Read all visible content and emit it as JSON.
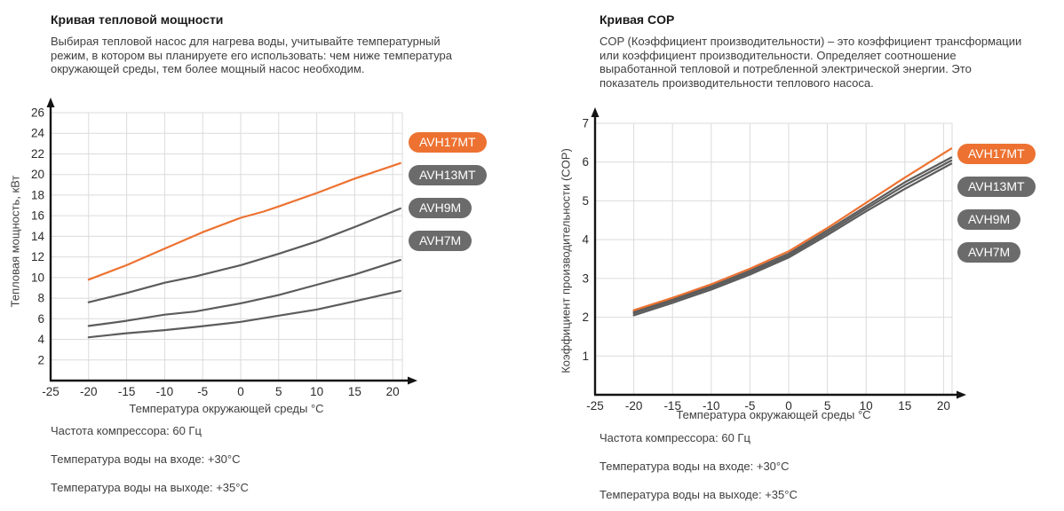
{
  "colors": {
    "accent_orange": "#ED7231",
    "badge_gray": "#6B6B6B",
    "curve_gray": "#5C5C5C",
    "grid": "#DBDBDB",
    "axis": "#141414",
    "text": "#3E3E3E",
    "heading": "#1A1A1A",
    "tick": "#2B2B2B"
  },
  "models": [
    "AVH17MT",
    "AVH13MT",
    "AVH9M",
    "AVH7M"
  ],
  "active_model": "AVH17MT",
  "conditions": [
    "Частота компрессора: 60 Гц",
    "Температура воды на входе: +30°C",
    "Температура воды на выходе: +35°C"
  ],
  "sections": {
    "power": {
      "description": "Выбирая тепловой насос для нагрева воды, учитывайте температурный режим, в котором вы планируете его использовать: чем ниже температура окружающей среды, тем более мощный насос необходим."
    },
    "cop": {
      "description": "COP (Коэффициент производительности) – это коэффициент трансформации или коэффициент производительности. Определяет соотношение выработанной тепловой и потребленной электрической энергии. Это показатель производительности теплового насоса."
    }
  },
  "chart_data": [
    {
      "id": "power",
      "type": "line",
      "title": "Кривая тепловой мощности",
      "xlabel": "Температура окружающей среды °C",
      "ylabel": "Тепловая мощность, кВт",
      "xlim": [
        -25,
        21.3
      ],
      "ylim": [
        0,
        27
      ],
      "xticks": [
        -25,
        -20,
        -15,
        -10,
        -5,
        0,
        5,
        10,
        15,
        20
      ],
      "yticks": [
        2,
        4,
        6,
        8,
        10,
        12,
        14,
        16,
        18,
        20,
        22,
        24,
        26
      ],
      "grid": true,
      "legend_position": "right",
      "series": [
        {
          "name": "AVH17MT",
          "color": "#ED7231",
          "points": [
            [
              -20,
              9.8
            ],
            [
              -15,
              11.2
            ],
            [
              -10,
              12.8
            ],
            [
              -5,
              14.4
            ],
            [
              0,
              15.8
            ],
            [
              3,
              16.4
            ],
            [
              5,
              16.9
            ],
            [
              10,
              18.2
            ],
            [
              15,
              19.6
            ],
            [
              21,
              21.1
            ]
          ]
        },
        {
          "name": "AVH13MT",
          "color": "#5C5C5C",
          "points": [
            [
              -20,
              7.6
            ],
            [
              -15,
              8.5
            ],
            [
              -10,
              9.5
            ],
            [
              -6,
              10.1
            ],
            [
              0,
              11.2
            ],
            [
              5,
              12.3
            ],
            [
              10,
              13.5
            ],
            [
              15,
              14.9
            ],
            [
              21,
              16.7
            ]
          ]
        },
        {
          "name": "AVH9M",
          "color": "#5C5C5C",
          "points": [
            [
              -20,
              5.3
            ],
            [
              -15,
              5.8
            ],
            [
              -10,
              6.4
            ],
            [
              -6,
              6.7
            ],
            [
              0,
              7.5
            ],
            [
              5,
              8.3
            ],
            [
              10,
              9.3
            ],
            [
              15,
              10.3
            ],
            [
              21,
              11.7
            ]
          ]
        },
        {
          "name": "AVH7M",
          "color": "#5C5C5C",
          "points": [
            [
              -20,
              4.2
            ],
            [
              -15,
              4.6
            ],
            [
              -10,
              4.9
            ],
            [
              -6,
              5.2
            ],
            [
              0,
              5.7
            ],
            [
              5,
              6.3
            ],
            [
              10,
              6.9
            ],
            [
              15,
              7.7
            ],
            [
              21,
              8.7
            ]
          ]
        }
      ]
    },
    {
      "id": "cop",
      "type": "line",
      "title": "Кривая COP",
      "xlabel": "Температура окружающей среды °C",
      "ylabel": "Коэффициент производительности (COP)",
      "xlim": [
        -25,
        21.3
      ],
      "ylim": [
        0,
        7.3
      ],
      "xticks": [
        -25,
        -20,
        -15,
        -10,
        -5,
        0,
        5,
        10,
        15,
        20
      ],
      "yticks": [
        1,
        2,
        3,
        4,
        5,
        6,
        7
      ],
      "grid": true,
      "legend_position": "right",
      "series": [
        {
          "name": "AVH17MT",
          "color": "#ED7231",
          "points": [
            [
              -20,
              2.18
            ],
            [
              -15,
              2.5
            ],
            [
              -10,
              2.85
            ],
            [
              -5,
              3.25
            ],
            [
              0,
              3.7
            ],
            [
              5,
              4.3
            ],
            [
              10,
              4.95
            ],
            [
              15,
              5.6
            ],
            [
              21,
              6.35
            ]
          ]
        },
        {
          "name": "AVH13MT",
          "color": "#5C5C5C",
          "points": [
            [
              -20,
              2.14
            ],
            [
              -15,
              2.46
            ],
            [
              -10,
              2.8
            ],
            [
              -5,
              3.2
            ],
            [
              0,
              3.64
            ],
            [
              5,
              4.24
            ],
            [
              10,
              4.86
            ],
            [
              15,
              5.48
            ],
            [
              21,
              6.12
            ]
          ]
        },
        {
          "name": "AVH9M",
          "color": "#5C5C5C",
          "points": [
            [
              -20,
              2.1
            ],
            [
              -15,
              2.42
            ],
            [
              -10,
              2.76
            ],
            [
              -5,
              3.15
            ],
            [
              0,
              3.59
            ],
            [
              5,
              4.18
            ],
            [
              10,
              4.8
            ],
            [
              15,
              5.4
            ],
            [
              21,
              6.04
            ]
          ]
        },
        {
          "name": "AVH7M",
          "color": "#5C5C5C",
          "points": [
            [
              -20,
              2.05
            ],
            [
              -15,
              2.37
            ],
            [
              -10,
              2.71
            ],
            [
              -5,
              3.1
            ],
            [
              0,
              3.54
            ],
            [
              5,
              4.12
            ],
            [
              10,
              4.73
            ],
            [
              15,
              5.31
            ],
            [
              21,
              5.96
            ]
          ]
        }
      ]
    }
  ]
}
